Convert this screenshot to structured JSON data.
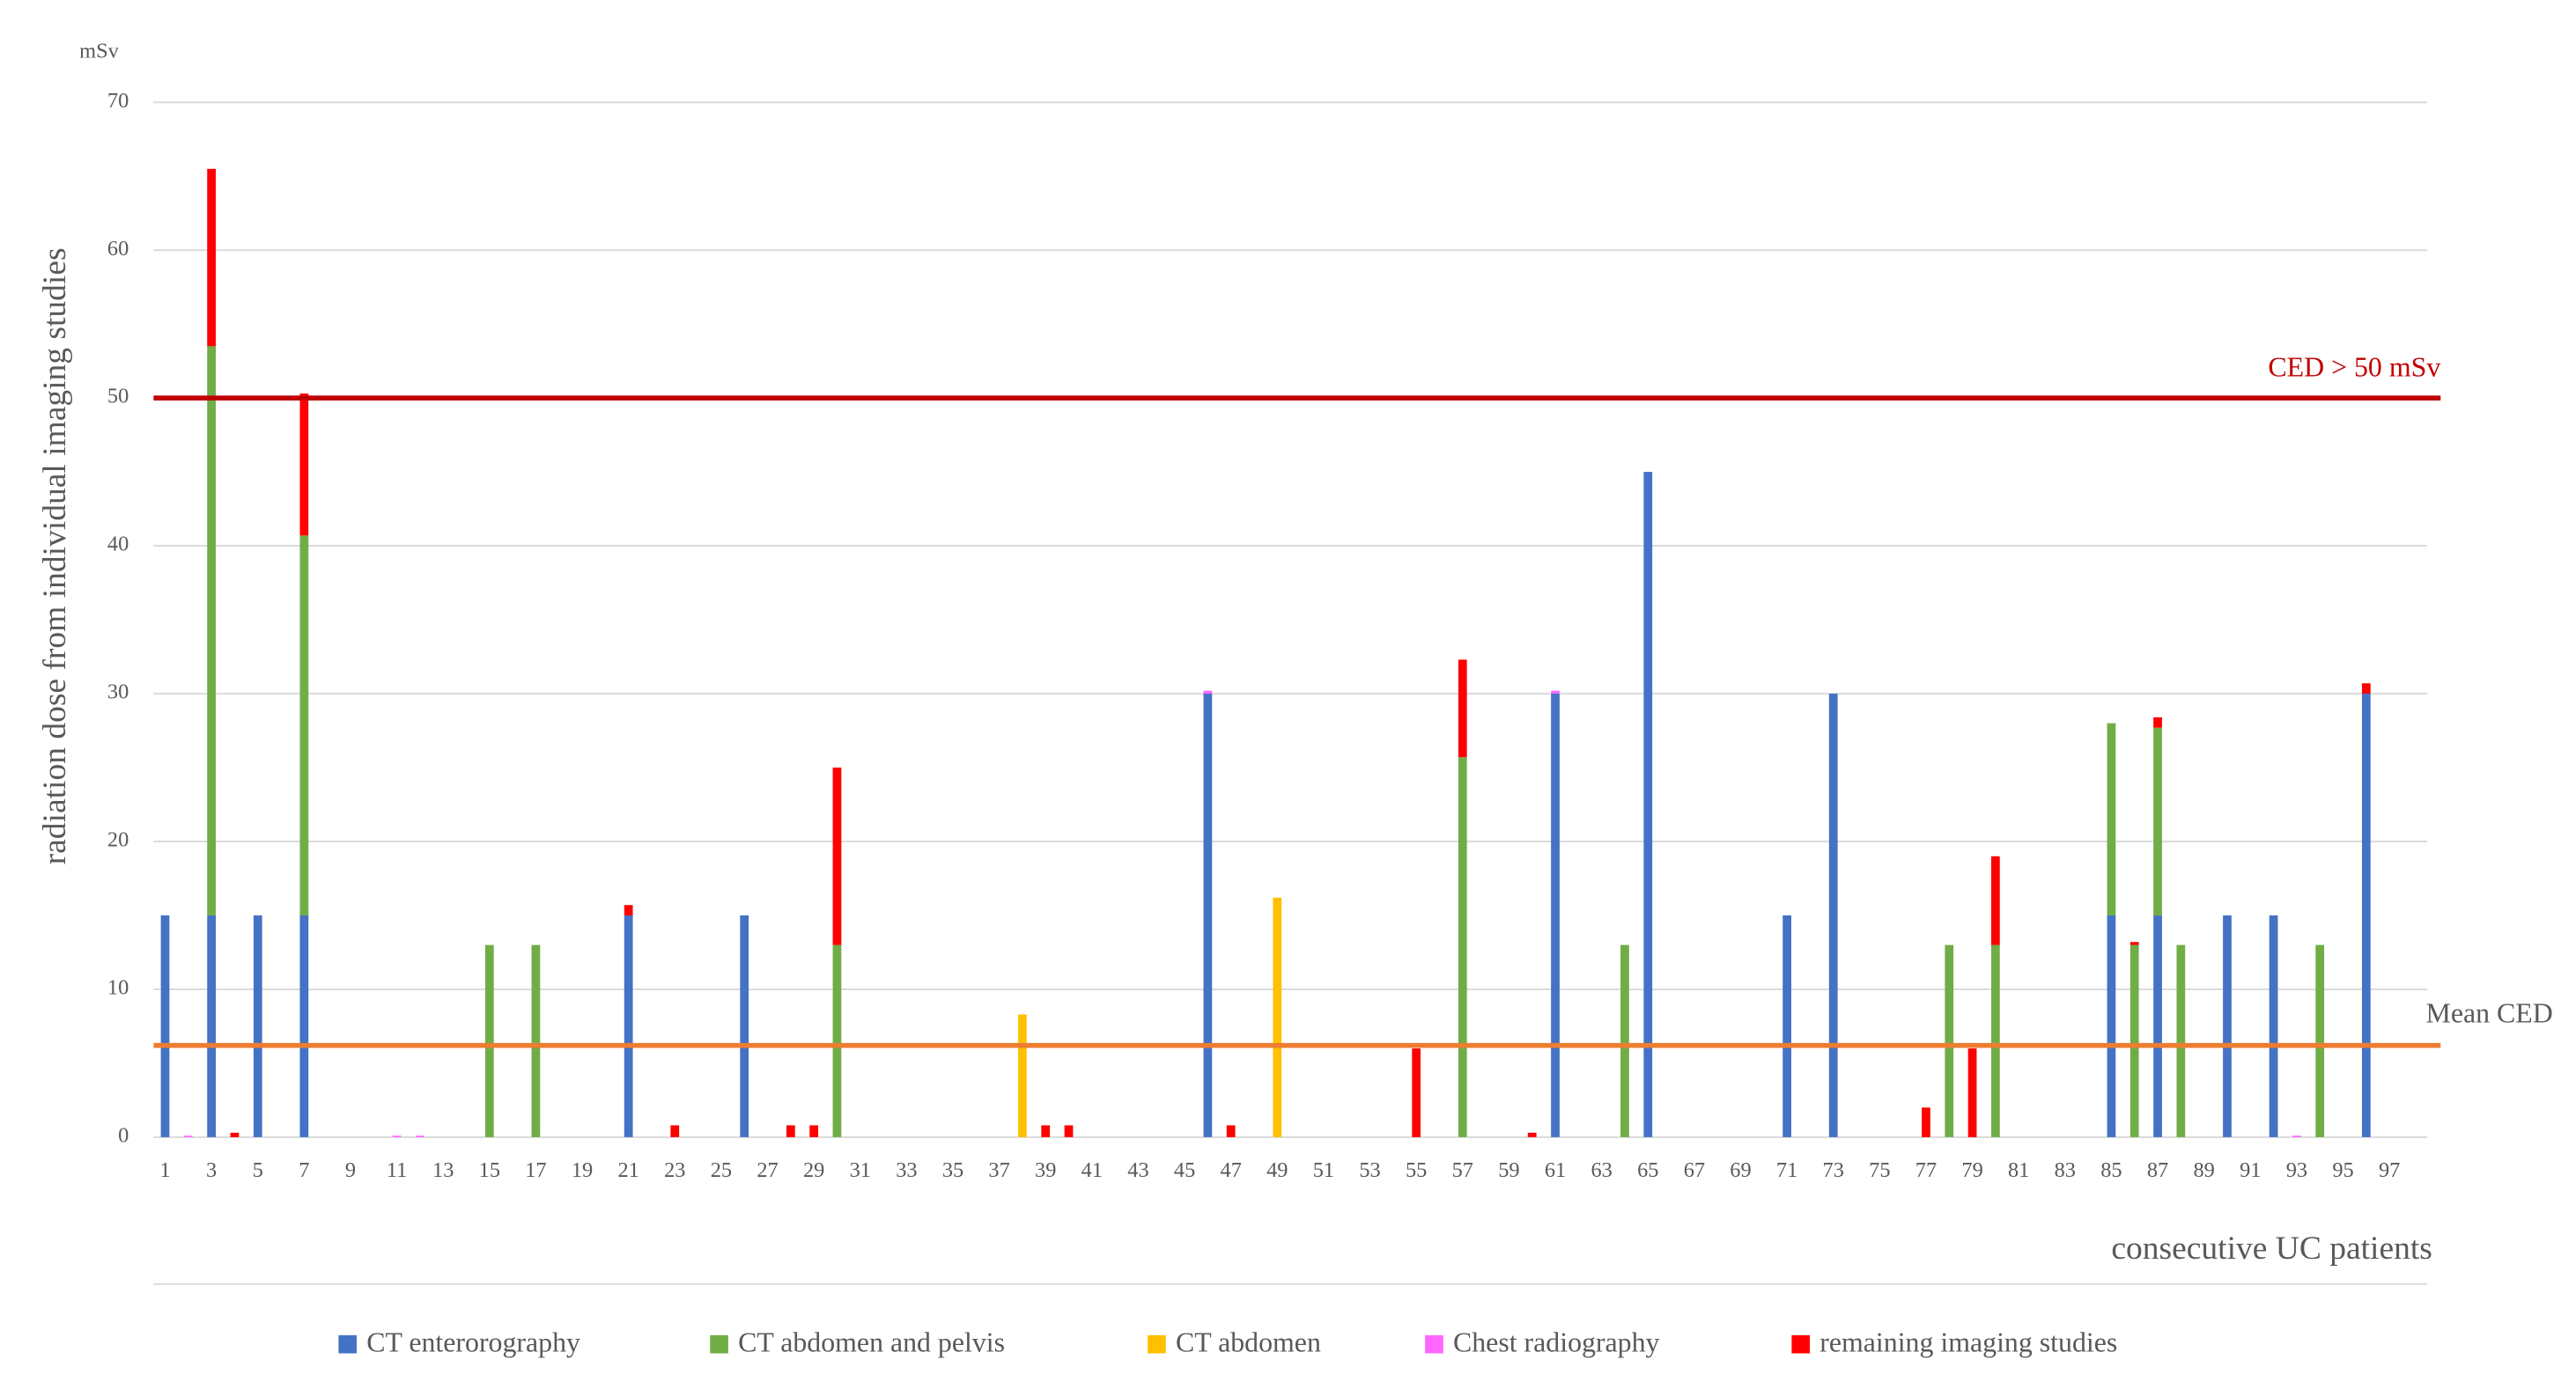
{
  "chart_data": {
    "type": "stacked-bar",
    "y_unit": "mSv",
    "y_label": "radiation dose from individual imaging studies",
    "x_label": "consecutive UC patients",
    "categories": [
      1,
      null,
      3,
      null,
      5,
      null,
      7,
      null,
      9,
      null,
      11,
      null,
      13,
      null,
      15,
      null,
      17,
      null,
      19,
      null,
      21,
      null,
      23,
      null,
      25,
      null,
      27,
      null,
      29,
      null,
      31,
      null,
      33,
      null,
      35,
      null,
      37,
      null,
      39,
      null,
      41,
      null,
      43,
      null,
      45,
      null,
      47,
      null,
      49,
      null,
      51,
      null,
      53,
      null,
      55,
      null,
      57,
      null,
      59,
      null,
      61,
      null,
      63,
      null,
      65,
      null,
      67,
      null,
      69,
      null,
      71,
      null,
      73,
      null,
      75,
      null,
      77,
      null,
      79,
      null,
      81,
      null,
      83,
      null,
      85,
      null,
      87,
      null,
      89,
      null,
      91,
      null,
      93,
      null,
      95,
      null,
      97
    ],
    "series": [
      {
        "name": "CT enterorography",
        "color": "#4472c4",
        "values": [
          15,
          0,
          15,
          0,
          15,
          0,
          15,
          0,
          0,
          0,
          0,
          0,
          0,
          0,
          0,
          0,
          0,
          0,
          0,
          0,
          15,
          0,
          0,
          0,
          0,
          15,
          0,
          0,
          0,
          0,
          0,
          0,
          0,
          0,
          0,
          0,
          0,
          0,
          0,
          0,
          0,
          0,
          0,
          0,
          0,
          30,
          0,
          0,
          0,
          0,
          0,
          0,
          0,
          0,
          0,
          0,
          0,
          0,
          0,
          0,
          30,
          0,
          0,
          0,
          45,
          0,
          0,
          0,
          0,
          0,
          15,
          0,
          30,
          0,
          0,
          0,
          0,
          0,
          0,
          0,
          0,
          0,
          0,
          0,
          15,
          0,
          15,
          0,
          0,
          15,
          0,
          15,
          0,
          0,
          0,
          30,
          0
        ]
      },
      {
        "name": "CT abdomen and pelvis",
        "color": "#70ad47",
        "values": [
          0,
          0,
          38.5,
          0,
          0,
          0,
          25.7,
          0,
          0,
          0,
          0,
          0,
          0,
          0,
          13,
          0,
          13,
          0,
          0,
          0,
          0,
          0,
          0,
          0,
          0,
          0,
          0,
          0,
          0,
          13,
          0,
          0,
          0,
          0,
          0,
          0,
          0,
          0,
          0,
          0,
          0,
          0,
          0,
          0,
          0,
          0,
          0,
          0,
          0,
          0,
          0,
          0,
          0,
          0,
          0,
          0,
          25.7,
          0,
          0,
          0,
          0,
          0,
          0,
          13,
          0,
          0,
          0,
          0,
          0,
          0,
          0,
          0,
          0,
          0,
          0,
          0,
          0,
          13,
          0,
          13,
          0,
          0,
          0,
          0,
          13,
          13,
          12.7,
          13,
          0,
          0,
          0,
          0,
          0,
          13,
          0,
          0,
          0
        ]
      },
      {
        "name": "CT abdomen",
        "color": "#ffc000",
        "values": [
          0,
          0,
          0,
          0,
          0,
          0,
          0,
          0,
          0,
          0,
          0,
          0,
          0,
          0,
          0,
          0,
          0,
          0,
          0,
          0,
          0,
          0,
          0,
          0,
          0,
          0,
          0,
          0,
          0,
          0,
          0,
          0,
          0,
          0,
          0,
          0,
          0,
          8.3,
          0,
          0,
          0,
          0,
          0,
          0,
          0,
          0,
          0,
          0,
          16.2,
          0,
          0,
          0,
          0,
          0,
          0,
          0,
          0,
          0,
          0,
          0,
          0,
          0,
          0,
          0,
          0,
          0,
          0,
          0,
          0,
          0,
          0,
          0,
          0,
          0,
          0,
          0,
          0,
          0,
          0,
          0,
          0,
          0,
          0,
          0,
          0,
          0,
          0,
          0,
          0,
          0,
          0,
          0,
          0,
          0,
          0,
          0,
          0
        ]
      },
      {
        "name": "Chest radiography",
        "color": "#ff66ff",
        "values": [
          0,
          0.1,
          0,
          0,
          0,
          0,
          0,
          0,
          0,
          0,
          0.1,
          0.1,
          0,
          0,
          0,
          0,
          0,
          0,
          0,
          0,
          0,
          0,
          0,
          0,
          0,
          0,
          0,
          0,
          0,
          0,
          0,
          0,
          0,
          0,
          0,
          0,
          0,
          0,
          0,
          0,
          0,
          0,
          0,
          0,
          0,
          0.2,
          0,
          0,
          0,
          0,
          0,
          0,
          0,
          0,
          0,
          0,
          0,
          0,
          0,
          0,
          0.2,
          0,
          0,
          0,
          0,
          0,
          0,
          0,
          0,
          0,
          0,
          0,
          0,
          0,
          0,
          0,
          0,
          0,
          0,
          0,
          0,
          0,
          0,
          0,
          0,
          0,
          0,
          0,
          0,
          0,
          0,
          0,
          0.1,
          0,
          0,
          0,
          0
        ]
      },
      {
        "name": "remaining imaging studies",
        "color": "#ff0000",
        "values": [
          0,
          0,
          12,
          0.3,
          0,
          0,
          9.6,
          0,
          0,
          0,
          0,
          0,
          0,
          0,
          0,
          0,
          0,
          0,
          0,
          0,
          0.7,
          0,
          0.8,
          0,
          0,
          0,
          0,
          0.8,
          0.8,
          12,
          0,
          0,
          0,
          0,
          0,
          0,
          0,
          0,
          0.8,
          0.8,
          0,
          0,
          0,
          0,
          0,
          0,
          0.8,
          0,
          0,
          0,
          0,
          0,
          0,
          0,
          6,
          0,
          6.6,
          0,
          0,
          0.3,
          0,
          0,
          0,
          0,
          0,
          0,
          0,
          0,
          0,
          0,
          0,
          0,
          0,
          0,
          0,
          0,
          2,
          0,
          6,
          6,
          0,
          0,
          0,
          0,
          0,
          0.2,
          0.7,
          0,
          0,
          0,
          0,
          0,
          0,
          0,
          0,
          0.7,
          0
        ]
      }
    ],
    "reference_lines": [
      {
        "label": "CED > 50 mSv",
        "value": 50,
        "color": "#c00000"
      },
      {
        "label": "Mean CED",
        "value": 6.2,
        "color": "#ed7d31"
      }
    ],
    "ylim": [
      0,
      70
    ],
    "yticks": [
      0,
      10,
      20,
      30,
      40,
      50,
      60,
      70
    ],
    "grid": true,
    "legend": "bottom"
  }
}
